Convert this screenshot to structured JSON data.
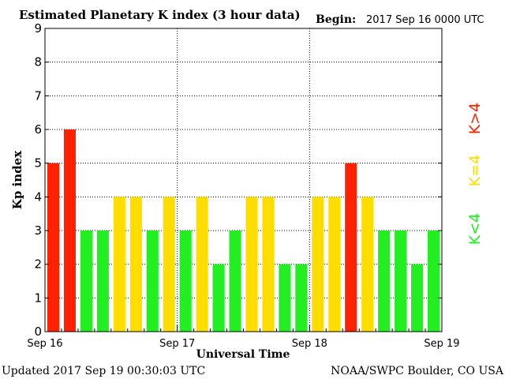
{
  "header": {
    "title": "Estimated Planetary K index (3 hour data)",
    "begin_label": "Begin:",
    "begin_value": "2017 Sep 16 0000 UTC"
  },
  "footer": {
    "updated": "Updated 2017 Sep 19 00:30:03 UTC",
    "source": "NOAA/SWPC Boulder, CO USA"
  },
  "legend": {
    "high": {
      "label": "K>4",
      "color": "#ff2200"
    },
    "mid": {
      "label": "K=4",
      "color": "#ffdd00"
    },
    "low": {
      "label": "K<4",
      "color": "#22ee22"
    }
  },
  "chart_data": {
    "type": "bar",
    "title": "Estimated Planetary K index (3 hour data)",
    "xlabel": "Universal Time",
    "ylabel": "Kp index",
    "ylim": [
      0,
      9
    ],
    "yticks": [
      "0",
      "1",
      "2",
      "3",
      "4",
      "5",
      "6",
      "7",
      "8",
      "9"
    ],
    "xticks": [
      "Sep 16",
      "Sep 17",
      "Sep 18",
      "Sep 19"
    ],
    "bars_per_day": 8,
    "values": [
      5,
      6,
      3,
      3,
      4,
      4,
      3,
      4,
      3,
      4,
      2,
      3,
      4,
      4,
      2,
      2,
      4,
      4,
      5,
      4,
      3,
      3,
      2,
      3
    ],
    "colors": {
      "high": "#ff2200",
      "mid": "#ffdd00",
      "low": "#22ee22"
    },
    "grid": true
  }
}
